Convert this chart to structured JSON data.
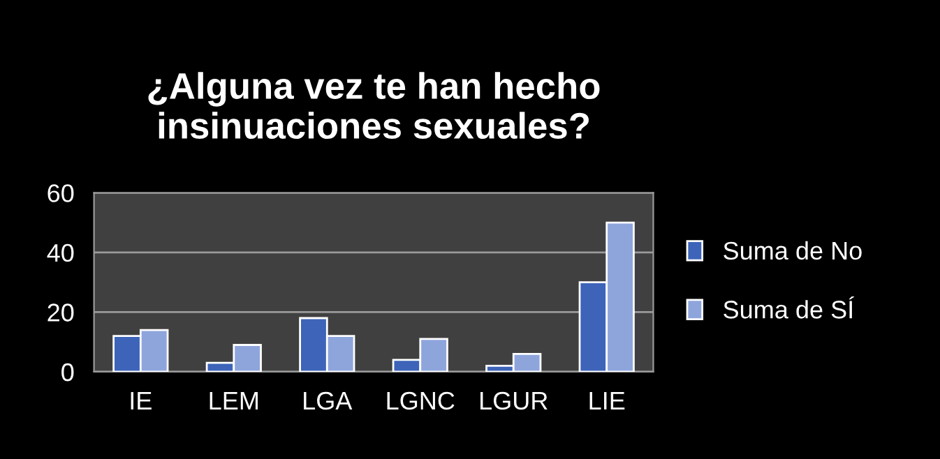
{
  "chart_data": {
    "type": "bar",
    "title": "¿Alguna vez te han hecho\ninsinuaciones sexuales?",
    "categories": [
      "IE",
      "LEM",
      "LGA",
      "LGNC",
      "LGUR",
      "LIE"
    ],
    "series": [
      {
        "name": "Suma de No",
        "color": "#3d64b8",
        "values": [
          12,
          3,
          18,
          4,
          2,
          30
        ]
      },
      {
        "name": "Suma de SÍ",
        "color": "#8ea5dc",
        "values": [
          14,
          9,
          12,
          11,
          6,
          50
        ]
      }
    ],
    "ylim": [
      0,
      60
    ],
    "yticks": [
      0,
      20,
      40,
      60
    ],
    "grid": "y",
    "legend": "right"
  }
}
